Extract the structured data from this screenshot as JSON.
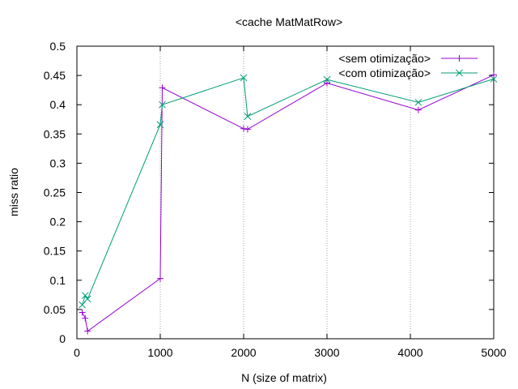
{
  "chart_data": {
    "type": "line",
    "title": "<cache MatMatRow>",
    "xlabel": "N (size of matrix)",
    "ylabel": "miss ratio",
    "xlim": [
      0,
      5000
    ],
    "ylim": [
      0,
      0.5
    ],
    "xticks": [
      0,
      1000,
      2000,
      3000,
      4000,
      5000
    ],
    "yticks": [
      0,
      0.05,
      0.1,
      0.15,
      0.2,
      0.25,
      0.3,
      0.35,
      0.4,
      0.45,
      0.5
    ],
    "grid": "vertical dotted at x ticks",
    "legend_position": "top-right",
    "series": [
      {
        "name": "<sem otimização>",
        "color": "#9400d3",
        "marker": "plus",
        "x": [
          64,
          100,
          128,
          1000,
          1024,
          2000,
          2048,
          3000,
          4096,
          5000
        ],
        "y": [
          0.045,
          0.035,
          0.013,
          0.103,
          0.429,
          0.359,
          0.358,
          0.437,
          0.391,
          0.451
        ]
      },
      {
        "name": "<com otimização>",
        "color": "#009e73",
        "marker": "cross",
        "x": [
          64,
          100,
          128,
          1000,
          1024,
          2000,
          2048,
          3000,
          4096,
          5000
        ],
        "y": [
          0.058,
          0.074,
          0.068,
          0.366,
          0.4,
          0.446,
          0.38,
          0.443,
          0.404,
          0.444
        ]
      }
    ]
  }
}
